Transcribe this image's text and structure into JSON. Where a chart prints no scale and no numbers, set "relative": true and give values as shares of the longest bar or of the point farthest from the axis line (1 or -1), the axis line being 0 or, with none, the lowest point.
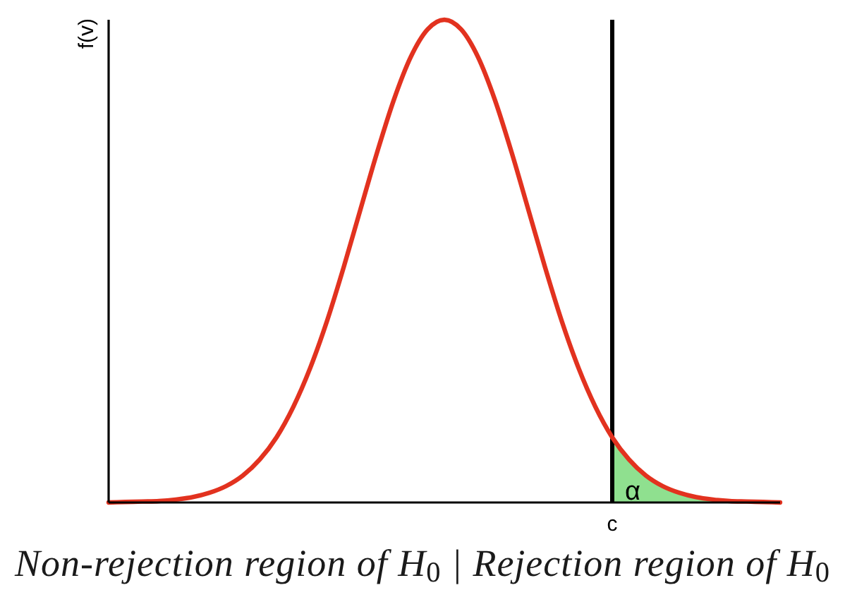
{
  "chart_data": {
    "type": "line",
    "relative": true,
    "ylabel": "f(v)",
    "xlabel": "Non-rejection region of H$_{0}$ | Rejection region of H$_{0}$",
    "categories": [
      null,
      null,
      null,
      null,
      null,
      null,
      null,
      null,
      null,
      null,
      null,
      null,
      null,
      null,
      null,
      null,
      null,
      null,
      null,
      null,
      null,
      null,
      null,
      null,
      null,
      null,
      null,
      null,
      null,
      null,
      null,
      null,
      null,
      null,
      null,
      null,
      null,
      null,
      null,
      null,
      null
    ],
    "series": [
      {
        "type": "area",
        "name": "α",
        "color": "#8fe08f",
        "values": [
          null,
          null,
          null,
          null,
          null,
          null,
          null,
          null,
          null,
          null,
          null,
          null,
          null,
          null,
          null,
          null,
          null,
          null,
          null,
          null,
          null,
          null,
          null,
          null,
          null,
          null,
          null,
          null,
          null,
          null,
          0.135,
          0.089,
          0.056,
          0.034,
          0.02,
          0.011,
          0.006,
          0.003,
          0.002,
          0.001,
          0
        ]
      },
      {
        "color": "#e2321f",
        "values": [
          0,
          0.001,
          0.002,
          0.003,
          0.006,
          0.011,
          0.02,
          0.034,
          0.056,
          0.089,
          0.135,
          0.198,
          0.278,
          0.375,
          0.487,
          0.607,
          0.726,
          0.835,
          0.923,
          0.98,
          1,
          0.98,
          0.923,
          0.835,
          0.726,
          0.607,
          0.487,
          0.375,
          0.278,
          0.198,
          0.135,
          0.089,
          0.056,
          0.034,
          0.02,
          0.011,
          0.006,
          0.003,
          0.002,
          0.001,
          0
        ]
      }
    ],
    "annotations": [
      "c"
    ]
  }
}
